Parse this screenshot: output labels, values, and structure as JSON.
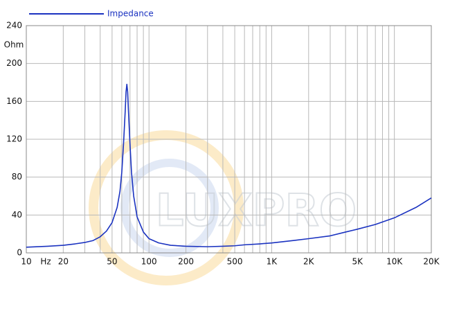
{
  "chart_data": {
    "type": "line",
    "log_x": true,
    "grid": true,
    "x_label": "Hz",
    "y_label": "Ohm",
    "watermark": "LUXPRO",
    "xlim": [
      10,
      20000
    ],
    "xticks": [
      10,
      20,
      50,
      100,
      200,
      500,
      {
        "value": 1000,
        "label": "1K"
      },
      {
        "value": 2000,
        "label": "2K"
      },
      {
        "value": 5000,
        "label": "5K"
      },
      {
        "value": 10000,
        "label": "10K"
      },
      {
        "value": 20000,
        "label": "20K"
      }
    ],
    "minor_xticks": [
      30,
      40,
      60,
      70,
      80,
      90,
      300,
      400,
      600,
      700,
      800,
      900,
      3000,
      4000,
      6000,
      7000,
      8000,
      9000
    ],
    "ylim": [
      0,
      240
    ],
    "yticks": [
      0,
      40,
      80,
      120,
      160,
      200,
      240
    ],
    "x": [
      10,
      15,
      20,
      25,
      30,
      35,
      40,
      45,
      50,
      55,
      58,
      60,
      62,
      64,
      65,
      66,
      67,
      68,
      70,
      72,
      75,
      80,
      90,
      100,
      120,
      150,
      200,
      300,
      400,
      500,
      600,
      800,
      1000,
      1500,
      2000,
      3000,
      4000,
      5000,
      7000,
      10000,
      15000,
      20000
    ],
    "series": [
      {
        "name": "Impedance",
        "color": "#1a32c0",
        "values": [
          6,
          7,
          8,
          9.5,
          11,
          13,
          17,
          23,
          32,
          48,
          65,
          85,
          115,
          150,
          170,
          178,
          170,
          150,
          115,
          85,
          60,
          38,
          22,
          15,
          10.5,
          8,
          7,
          6.5,
          7,
          7.5,
          8.5,
          9.5,
          10.5,
          13,
          15,
          18,
          22,
          25,
          30,
          37,
          48,
          58
        ]
      }
    ]
  }
}
